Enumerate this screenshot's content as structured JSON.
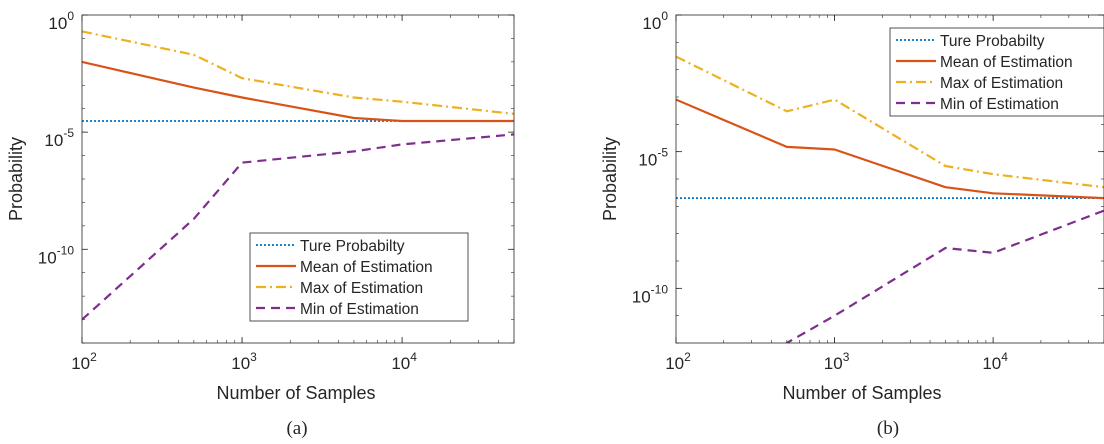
{
  "figure": {
    "captions": [
      "(a)",
      "(b)"
    ]
  },
  "colors": {
    "true_prob": "#0072BD",
    "mean": "#D95319",
    "max": "#EDB120",
    "min": "#7E2F8E",
    "axis": "#262626"
  },
  "chart_data": [
    {
      "type": "line",
      "caption": "(a)",
      "xlabel": "Number of Samples",
      "ylabel": "Probability",
      "xscale": "log",
      "yscale": "log",
      "xlim": [
        100,
        50000
      ],
      "ylim": [
        1e-14,
        1
      ],
      "x_ticks": [
        {
          "value": 100,
          "base": "10",
          "exp": "2"
        },
        {
          "value": 1000,
          "base": "10",
          "exp": "3"
        },
        {
          "value": 10000,
          "base": "10",
          "exp": "4"
        }
      ],
      "y_ticks": [
        {
          "value": 1,
          "base": "10",
          "exp": "0"
        },
        {
          "value": 1e-05,
          "base": "10",
          "exp": "-5"
        },
        {
          "value": 1e-10,
          "base": "10",
          "exp": "-10"
        }
      ],
      "legend_position": "bottom-right",
      "grid": false,
      "series": [
        {
          "name": "Ture Probabilty",
          "style": "dotted",
          "color_key": "true_prob",
          "x": [
            100,
            50000
          ],
          "y": [
            3e-05,
            3e-05
          ]
        },
        {
          "name": "Mean of Estimation",
          "style": "solid",
          "color_key": "mean",
          "x": [
            100,
            500,
            1000,
            5000,
            10000,
            50000
          ],
          "y": [
            0.01,
            0.0008,
            0.0003,
            4e-05,
            3e-05,
            3e-05
          ]
        },
        {
          "name": "Max of Estimation",
          "style": "dashdot",
          "color_key": "max",
          "x": [
            100,
            500,
            1000,
            5000,
            10000,
            50000
          ],
          "y": [
            0.2,
            0.02,
            0.002,
            0.0003,
            0.0002,
            6e-05
          ]
        },
        {
          "name": "Min of Estimation",
          "style": "dashed",
          "color_key": "min",
          "x": [
            100,
            500,
            1000,
            5000,
            10000,
            50000
          ],
          "y": [
            1e-13,
            2e-09,
            5e-07,
            1.5e-06,
            3e-06,
            8e-06
          ]
        }
      ]
    },
    {
      "type": "line",
      "caption": "(b)",
      "xlabel": "Number of Samples",
      "ylabel": "Probability",
      "xscale": "log",
      "yscale": "log",
      "xlim": [
        100,
        50000
      ],
      "ylim": [
        1e-12,
        1
      ],
      "x_ticks": [
        {
          "value": 100,
          "base": "10",
          "exp": "2"
        },
        {
          "value": 1000,
          "base": "10",
          "exp": "3"
        },
        {
          "value": 10000,
          "base": "10",
          "exp": "4"
        }
      ],
      "y_ticks": [
        {
          "value": 1,
          "base": "10",
          "exp": "0"
        },
        {
          "value": 1e-05,
          "base": "10",
          "exp": "-5"
        },
        {
          "value": 1e-10,
          "base": "10",
          "exp": "-10"
        }
      ],
      "legend_position": "top-right",
      "grid": false,
      "series": [
        {
          "name": "Ture Probabilty",
          "style": "dotted",
          "color_key": "true_prob",
          "x": [
            100,
            50000
          ],
          "y": [
            2e-07,
            2e-07
          ]
        },
        {
          "name": "Mean of Estimation",
          "style": "solid",
          "color_key": "mean",
          "x": [
            100,
            500,
            1000,
            5000,
            10000,
            50000
          ],
          "y": [
            0.0008,
            1.5e-05,
            1.2e-05,
            5e-07,
            3e-07,
            2e-07
          ]
        },
        {
          "name": "Max of Estimation",
          "style": "dashdot",
          "color_key": "max",
          "x": [
            100,
            500,
            1000,
            5000,
            10000,
            50000
          ],
          "y": [
            0.03,
            0.0003,
            0.0008,
            3e-06,
            1.5e-06,
            5e-07
          ]
        },
        {
          "name": "Min of Estimation",
          "style": "dashed",
          "color_key": "min",
          "x": [
            100,
            500,
            1000,
            5000,
            10000,
            50000
          ],
          "y": [
            1e-15,
            1e-12,
            1e-11,
            3e-09,
            2e-09,
            7e-08
          ]
        }
      ]
    }
  ]
}
